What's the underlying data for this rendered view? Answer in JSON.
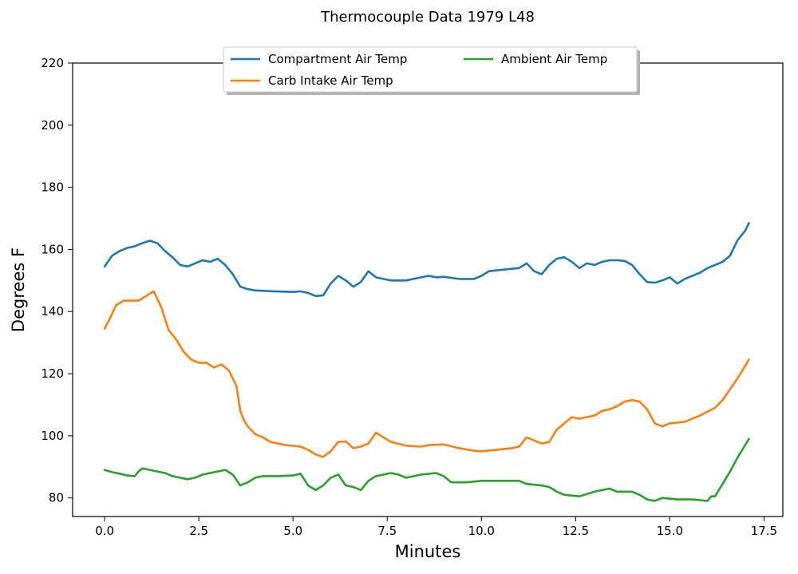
{
  "chart_data": {
    "type": "line",
    "title": "Thermocouple Data 1979 L48",
    "xlabel": "Minutes",
    "ylabel": "Degrees F",
    "xlim": [
      -0.85,
      18.0
    ],
    "ylim": [
      74,
      220
    ],
    "xticks": [
      "0.0",
      "2.5",
      "5.0",
      "7.5",
      "10.0",
      "12.5",
      "15.0",
      "17.5"
    ],
    "yticks": [
      "80",
      "100",
      "120",
      "140",
      "160",
      "180",
      "200",
      "220"
    ],
    "grid": false,
    "legend_position": "top-center",
    "series": [
      {
        "name": "Compartment Air Temp",
        "color": "#1f77b4",
        "x": [
          0,
          0.2,
          0.4,
          0.6,
          0.8,
          1.0,
          1.2,
          1.4,
          1.6,
          1.8,
          2.0,
          2.2,
          2.4,
          2.6,
          2.8,
          3.0,
          3.2,
          3.4,
          3.6,
          3.8,
          4.0,
          4.5,
          5.0,
          5.2,
          5.4,
          5.6,
          5.8,
          6.0,
          6.2,
          6.4,
          6.6,
          6.8,
          7.0,
          7.2,
          7.4,
          7.6,
          8.0,
          8.4,
          8.6,
          8.8,
          9.0,
          9.4,
          9.8,
          10.0,
          10.2,
          10.6,
          11.0,
          11.2,
          11.4,
          11.6,
          11.8,
          12.0,
          12.2,
          12.4,
          12.6,
          12.8,
          13.0,
          13.2,
          13.4,
          13.6,
          13.8,
          14.0,
          14.2,
          14.4,
          14.6,
          14.8,
          15.0,
          15.2,
          15.4,
          15.6,
          15.8,
          16.0,
          16.2,
          16.4,
          16.6,
          16.8,
          17.0,
          17.1
        ],
        "values": [
          154.5,
          158,
          159.5,
          160.5,
          161,
          162,
          162.8,
          162,
          159.5,
          157.5,
          155,
          154.5,
          155.5,
          156.5,
          156,
          157,
          155,
          152,
          148,
          147.2,
          146.8,
          146.5,
          146.3,
          146.5,
          146,
          145,
          145.2,
          149,
          151.5,
          150,
          148,
          149.5,
          153,
          151,
          150.5,
          150,
          150,
          151,
          151.5,
          151,
          151.2,
          150.5,
          150.5,
          151.5,
          153,
          153.5,
          154,
          155.5,
          153,
          152,
          155,
          157,
          157.5,
          156,
          154,
          155.5,
          155,
          156,
          156.5,
          156.5,
          156.3,
          155,
          152,
          149.5,
          149.3,
          150,
          151,
          149,
          150.5,
          151.5,
          152.5,
          154,
          155,
          156,
          158,
          163,
          166,
          168.5
        ]
      },
      {
        "name": "Carb Intake Air Temp",
        "color": "#ff7f0e",
        "x": [
          0,
          0.15,
          0.3,
          0.5,
          0.7,
          0.9,
          1.1,
          1.3,
          1.5,
          1.7,
          1.9,
          2.1,
          2.3,
          2.5,
          2.7,
          2.9,
          3.1,
          3.3,
          3.5,
          3.6,
          3.7,
          3.8,
          4.0,
          4.2,
          4.4,
          4.8,
          5.2,
          5.4,
          5.6,
          5.8,
          6.0,
          6.2,
          6.4,
          6.6,
          6.8,
          7.0,
          7.2,
          7.4,
          7.6,
          8.0,
          8.4,
          8.6,
          9.0,
          9.4,
          9.8,
          10.0,
          10.4,
          10.8,
          11.0,
          11.2,
          11.4,
          11.6,
          11.8,
          12.0,
          12.2,
          12.4,
          12.6,
          12.8,
          13.0,
          13.2,
          13.4,
          13.6,
          13.8,
          14.0,
          14.2,
          14.4,
          14.6,
          14.8,
          15.0,
          15.4,
          15.8,
          16.2,
          16.4,
          16.6,
          16.8,
          17.0,
          17.1
        ],
        "values": [
          134.5,
          138,
          142,
          143.5,
          143.5,
          143.5,
          145,
          146.5,
          141.5,
          134,
          131,
          127,
          124.5,
          123.5,
          123.5,
          122,
          123,
          121,
          116,
          108,
          105,
          103,
          100.5,
          99.5,
          98,
          97,
          96.5,
          95.5,
          94,
          93.2,
          95,
          98,
          98.2,
          96,
          96.5,
          97.5,
          101,
          99.5,
          98,
          96.8,
          96.5,
          97,
          97.2,
          96,
          95.2,
          95,
          95.5,
          96,
          96.5,
          99.5,
          98.5,
          97.5,
          98,
          102,
          104,
          106,
          105.5,
          106,
          106.5,
          108,
          108.5,
          109.5,
          111,
          111.5,
          111,
          108.5,
          104,
          103,
          104,
          104.5,
          106.5,
          109,
          111.5,
          115,
          118.5,
          122.5,
          124.5
        ]
      },
      {
        "name": "Ambient Air Temp",
        "color": "#2ca02c",
        "x": [
          0,
          0.2,
          0.4,
          0.6,
          0.8,
          0.9,
          1.0,
          1.2,
          1.4,
          1.6,
          1.8,
          2.0,
          2.2,
          2.4,
          2.6,
          2.8,
          3.0,
          3.2,
          3.4,
          3.6,
          3.8,
          4.0,
          4.2,
          4.6,
          5.0,
          5.2,
          5.4,
          5.6,
          5.8,
          6.0,
          6.2,
          6.4,
          6.6,
          6.8,
          7.0,
          7.2,
          7.4,
          7.6,
          7.8,
          8.0,
          8.4,
          8.8,
          9.0,
          9.2,
          9.6,
          10.0,
          10.4,
          10.8,
          11.0,
          11.2,
          11.6,
          11.8,
          12.0,
          12.2,
          12.6,
          13.0,
          13.4,
          13.6,
          14.0,
          14.2,
          14.4,
          14.6,
          14.8,
          15.2,
          15.6,
          16.0,
          16.1,
          16.2,
          16.4,
          16.6,
          16.8,
          17.0,
          17.1
        ],
        "values": [
          89,
          88.3,
          87.8,
          87.2,
          87,
          88.5,
          89.5,
          89,
          88.5,
          88,
          87,
          86.5,
          86,
          86.5,
          87.5,
          88,
          88.5,
          89,
          87.5,
          84,
          85,
          86.5,
          87,
          87,
          87.2,
          87.8,
          84,
          82.5,
          84,
          86.5,
          87.5,
          84,
          83.5,
          82.5,
          85.5,
          87,
          87.5,
          88,
          87.5,
          86.5,
          87.5,
          88,
          87,
          85,
          85,
          85.5,
          85.5,
          85.5,
          85.5,
          84.5,
          84,
          83.5,
          82,
          81,
          80.5,
          82,
          83,
          82,
          82,
          81,
          79.5,
          79,
          80,
          79.5,
          79.5,
          79,
          80.5,
          80.5,
          84.5,
          88.5,
          93,
          97,
          99
        ]
      }
    ]
  }
}
